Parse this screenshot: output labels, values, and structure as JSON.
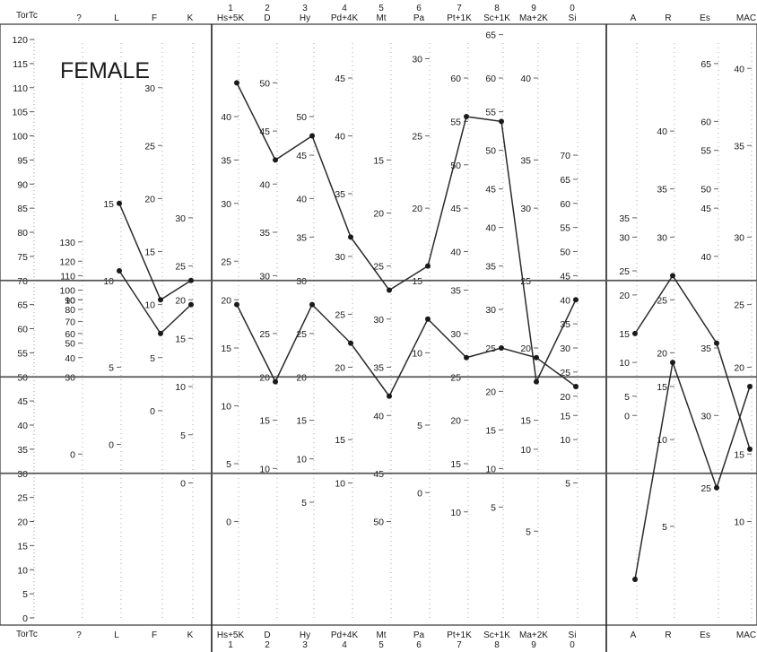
{
  "chart_data": {
    "type": "line",
    "title": "FEMALE",
    "tscore_label": "TorTc",
    "ylim": [
      0,
      120
    ],
    "tscore_ticks": [
      0,
      5,
      10,
      15,
      20,
      25,
      30,
      35,
      40,
      45,
      50,
      55,
      60,
      65,
      70,
      75,
      80,
      85,
      90,
      95,
      100,
      105,
      110,
      115,
      120
    ],
    "reference_lines": [
      30,
      50,
      70
    ],
    "scales": [
      {
        "abbr": "?",
        "number": "",
        "ticks": [
          [
            0,
            34
          ],
          [
            10,
            66
          ],
          [
            30,
            50
          ],
          [
            40,
            54
          ],
          [
            50,
            57
          ],
          [
            60,
            59
          ],
          [
            70,
            61.5
          ],
          [
            80,
            64
          ],
          [
            90,
            66
          ],
          [
            100,
            68
          ],
          [
            110,
            71
          ],
          [
            120,
            74
          ],
          [
            130,
            78
          ]
        ]
      },
      {
        "abbr": "L",
        "number": "",
        "ticks": [
          [
            0,
            36
          ],
          [
            5,
            52
          ],
          [
            10,
            70
          ],
          [
            15,
            86
          ]
        ]
      },
      {
        "abbr": "F",
        "number": "",
        "ticks": [
          [
            0,
            43
          ],
          [
            5,
            54
          ],
          [
            10,
            65
          ],
          [
            15,
            76
          ],
          [
            20,
            87
          ],
          [
            25,
            98
          ],
          [
            30,
            110
          ]
        ]
      },
      {
        "abbr": "K",
        "number": "",
        "ticks": [
          [
            0,
            28
          ],
          [
            5,
            38
          ],
          [
            10,
            48
          ],
          [
            15,
            58
          ],
          [
            20,
            66
          ],
          [
            25,
            73
          ],
          [
            30,
            83
          ]
        ]
      },
      {
        "abbr": "Hs+5K",
        "number": "1",
        "ticks": [
          [
            0,
            20
          ],
          [
            5,
            32
          ],
          [
            10,
            44
          ],
          [
            15,
            56
          ],
          [
            20,
            66
          ],
          [
            25,
            74
          ],
          [
            30,
            86
          ],
          [
            35,
            95
          ],
          [
            40,
            104
          ]
        ]
      },
      {
        "abbr": "D",
        "number": "2",
        "ticks": [
          [
            10,
            31
          ],
          [
            15,
            41
          ],
          [
            20,
            50
          ],
          [
            25,
            59
          ],
          [
            30,
            71
          ],
          [
            35,
            80
          ],
          [
            40,
            90
          ],
          [
            45,
            101
          ],
          [
            50,
            111
          ]
        ]
      },
      {
        "abbr": "Hy",
        "number": "3",
        "ticks": [
          [
            5,
            24
          ],
          [
            10,
            33
          ],
          [
            15,
            41
          ],
          [
            20,
            50
          ],
          [
            25,
            59
          ],
          [
            30,
            70
          ],
          [
            35,
            79
          ],
          [
            40,
            87
          ],
          [
            45,
            96
          ],
          [
            50,
            104
          ]
        ]
      },
      {
        "abbr": "Pd+4K",
        "number": "4",
        "ticks": [
          [
            10,
            28
          ],
          [
            15,
            37
          ],
          [
            20,
            52
          ],
          [
            25,
            63
          ],
          [
            30,
            75
          ],
          [
            35,
            88
          ],
          [
            40,
            100
          ],
          [
            45,
            112
          ]
        ]
      },
      {
        "abbr": "Mt",
        "number": "5",
        "ticks": [
          [
            50,
            20
          ],
          [
            45,
            30
          ],
          [
            40,
            42
          ],
          [
            35,
            52
          ],
          [
            30,
            62
          ],
          [
            25,
            73
          ],
          [
            20,
            84
          ],
          [
            15,
            95
          ]
        ]
      },
      {
        "abbr": "Pa",
        "number": "6",
        "ticks": [
          [
            0,
            26
          ],
          [
            5,
            40
          ],
          [
            10,
            55
          ],
          [
            15,
            70
          ],
          [
            20,
            85
          ],
          [
            25,
            100
          ],
          [
            30,
            116
          ]
        ]
      },
      {
        "abbr": "Pt+1K",
        "number": "7",
        "ticks": [
          [
            10,
            22
          ],
          [
            15,
            32
          ],
          [
            20,
            41
          ],
          [
            25,
            50
          ],
          [
            30,
            59
          ],
          [
            35,
            68
          ],
          [
            40,
            76
          ],
          [
            45,
            85
          ],
          [
            50,
            94
          ],
          [
            55,
            103
          ],
          [
            60,
            112
          ]
        ]
      },
      {
        "abbr": "Sc+1K",
        "number": "8",
        "ticks": [
          [
            5,
            23
          ],
          [
            10,
            31
          ],
          [
            15,
            39
          ],
          [
            20,
            47
          ],
          [
            25,
            56
          ],
          [
            30,
            64
          ],
          [
            35,
            73
          ],
          [
            40,
            81
          ],
          [
            45,
            89
          ],
          [
            50,
            97
          ],
          [
            55,
            105
          ],
          [
            60,
            112
          ],
          [
            65,
            121
          ]
        ]
      },
      {
        "abbr": "Ma+2K",
        "number": "9",
        "ticks": [
          [
            5,
            18
          ],
          [
            10,
            35
          ],
          [
            15,
            41
          ],
          [
            20,
            56
          ],
          [
            25,
            70
          ],
          [
            30,
            85
          ],
          [
            35,
            95
          ],
          [
            40,
            112
          ]
        ]
      },
      {
        "abbr": "Si",
        "number": "0",
        "ticks": [
          [
            5,
            28
          ],
          [
            10,
            37
          ],
          [
            15,
            42
          ],
          [
            20,
            46
          ],
          [
            25,
            51
          ],
          [
            30,
            56
          ],
          [
            35,
            61
          ],
          [
            40,
            66
          ],
          [
            45,
            71
          ],
          [
            50,
            76
          ],
          [
            55,
            81
          ],
          [
            60,
            86
          ],
          [
            65,
            91
          ],
          [
            70,
            96
          ]
        ]
      },
      {
        "abbr": "A",
        "number": "",
        "ticks": [
          [
            0,
            42
          ],
          [
            5,
            46
          ],
          [
            10,
            53
          ],
          [
            15,
            59
          ],
          [
            20,
            67
          ],
          [
            25,
            72
          ],
          [
            30,
            79
          ],
          [
            35,
            83
          ]
        ]
      },
      {
        "abbr": "R",
        "number": "",
        "ticks": [
          [
            5,
            19
          ],
          [
            10,
            37
          ],
          [
            15,
            48
          ],
          [
            20,
            55
          ],
          [
            25,
            66
          ],
          [
            30,
            79
          ],
          [
            35,
            89
          ],
          [
            40,
            101
          ]
        ]
      },
      {
        "abbr": "Es",
        "number": "",
        "ticks": [
          [
            25,
            27
          ],
          [
            30,
            42
          ],
          [
            35,
            56
          ],
          [
            40,
            75
          ],
          [
            45,
            85
          ],
          [
            50,
            89
          ],
          [
            55,
            97
          ],
          [
            60,
            103
          ],
          [
            65,
            115
          ]
        ]
      },
      {
        "abbr": "MAC",
        "number": "",
        "ticks": [
          [
            10,
            20
          ],
          [
            15,
            34
          ],
          [
            20,
            52
          ],
          [
            25,
            65
          ],
          [
            30,
            79
          ],
          [
            35,
            98
          ],
          [
            40,
            114
          ]
        ]
      }
    ],
    "series": [
      {
        "group": "validity",
        "scales": [
          "L",
          "F",
          "K"
        ],
        "values": [
          72,
          59,
          65
        ]
      },
      {
        "group": "validity",
        "scales": [
          "L",
          "F",
          "K"
        ],
        "values": [
          86,
          66,
          70
        ]
      },
      {
        "group": "clinical",
        "scales": [
          "Hs+5K",
          "D",
          "Hy",
          "Pd+4K",
          "Mt",
          "Pa",
          "Pt+1K",
          "Sc+1K",
          "Ma+2K",
          "Si"
        ],
        "values": [
          111,
          95,
          100,
          79,
          68,
          73,
          104,
          103,
          49,
          66
        ]
      },
      {
        "group": "clinical",
        "scales": [
          "Hs+5K",
          "D",
          "Hy",
          "Pd+4K",
          "Mt",
          "Pa",
          "Pt+1K",
          "Sc+1K",
          "Ma+2K",
          "Si"
        ],
        "values": [
          65,
          49,
          65,
          57,
          46,
          62,
          54,
          56,
          54,
          48
        ]
      },
      {
        "group": "supplementary",
        "scales": [
          "A",
          "R",
          "Es",
          "MAC"
        ],
        "values": [
          8,
          53,
          27,
          48
        ]
      },
      {
        "group": "supplementary",
        "scales": [
          "A",
          "R",
          "Es",
          "MAC"
        ],
        "values": [
          59,
          71,
          57,
          35
        ]
      }
    ]
  }
}
